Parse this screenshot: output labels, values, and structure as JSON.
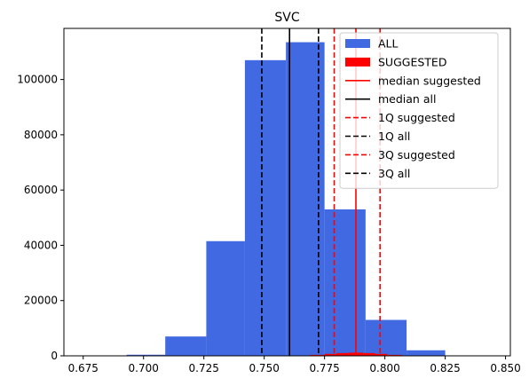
{
  "chart_data": {
    "type": "histogram",
    "title": "SVC",
    "xlabel": "",
    "ylabel": "",
    "xlim": [
      0.667,
      0.852
    ],
    "ylim": [
      0,
      118500
    ],
    "xticks": [
      0.675,
      0.7,
      0.725,
      0.75,
      0.775,
      0.8,
      0.825,
      0.85
    ],
    "xtick_labels": [
      "0.675",
      "0.700",
      "0.725",
      "0.750",
      "0.775",
      "0.800",
      "0.825",
      "0.850"
    ],
    "yticks": [
      0,
      20000,
      40000,
      60000,
      80000,
      100000
    ],
    "ytick_labels": [
      "0",
      "20000",
      "40000",
      "60000",
      "80000",
      "100000"
    ],
    "grid": false,
    "legend_position": "top-right",
    "series": [
      {
        "name": "ALL",
        "kind": "bars",
        "color": "#4169e1",
        "bins": [
          {
            "x0": 0.676,
            "x1": 0.693,
            "value": 0
          },
          {
            "x0": 0.693,
            "x1": 0.709,
            "value": 400
          },
          {
            "x0": 0.709,
            "x1": 0.726,
            "value": 7000
          },
          {
            "x0": 0.726,
            "x1": 0.742,
            "value": 41500
          },
          {
            "x0": 0.742,
            "x1": 0.759,
            "value": 107000
          },
          {
            "x0": 0.759,
            "x1": 0.775,
            "value": 113500
          },
          {
            "x0": 0.775,
            "x1": 0.792,
            "value": 53000
          },
          {
            "x0": 0.792,
            "x1": 0.809,
            "value": 13000
          },
          {
            "x0": 0.809,
            "x1": 0.825,
            "value": 2000
          },
          {
            "x0": 0.825,
            "x1": 0.842,
            "value": 100
          }
        ]
      },
      {
        "name": "SUGGESTED",
        "kind": "bars",
        "color": "#ff0000",
        "bins": [
          {
            "x0": 0.764,
            "x1": 0.769,
            "value": 150
          },
          {
            "x0": 0.769,
            "x1": 0.775,
            "value": 350
          },
          {
            "x0": 0.775,
            "x1": 0.78,
            "value": 700
          },
          {
            "x0": 0.78,
            "x1": 0.785,
            "value": 1000
          },
          {
            "x0": 0.785,
            "x1": 0.791,
            "value": 1150
          },
          {
            "x0": 0.791,
            "x1": 0.796,
            "value": 1000
          },
          {
            "x0": 0.796,
            "x1": 0.801,
            "value": 700
          },
          {
            "x0": 0.801,
            "x1": 0.807,
            "value": 350
          },
          {
            "x0": 0.807,
            "x1": 0.812,
            "value": 150
          }
        ]
      },
      {
        "name": "median suggested",
        "kind": "vline",
        "x": 0.788,
        "color": "#ff0000",
        "style": "solid"
      },
      {
        "name": "median all",
        "kind": "vline",
        "x": 0.7605,
        "color": "#000000",
        "style": "solid"
      },
      {
        "name": "1Q suggested",
        "kind": "vline",
        "x": 0.779,
        "color": "#ff0000",
        "style": "dashed"
      },
      {
        "name": "1Q all",
        "kind": "vline",
        "x": 0.749,
        "color": "#000000",
        "style": "dashed"
      },
      {
        "name": "3Q suggested",
        "kind": "vline",
        "x": 0.798,
        "color": "#ff0000",
        "style": "dashed"
      },
      {
        "name": "3Q all",
        "kind": "vline",
        "x": 0.7725,
        "color": "#000000",
        "style": "dashed"
      }
    ],
    "legend": [
      {
        "label": "ALL",
        "marker": "patch",
        "color": "#4169e1",
        "style": "solid"
      },
      {
        "label": "SUGGESTED",
        "marker": "patch",
        "color": "#ff0000",
        "style": "solid"
      },
      {
        "label": "median suggested",
        "marker": "line",
        "color": "#ff0000",
        "style": "solid"
      },
      {
        "label": "median all",
        "marker": "line",
        "color": "#000000",
        "style": "solid"
      },
      {
        "label": "1Q suggested",
        "marker": "line",
        "color": "#ff0000",
        "style": "dashed"
      },
      {
        "label": "1Q all",
        "marker": "line",
        "color": "#000000",
        "style": "dashed"
      },
      {
        "label": "3Q suggested",
        "marker": "line",
        "color": "#ff0000",
        "style": "dashed"
      },
      {
        "label": "3Q all",
        "marker": "line",
        "color": "#000000",
        "style": "dashed"
      }
    ]
  }
}
